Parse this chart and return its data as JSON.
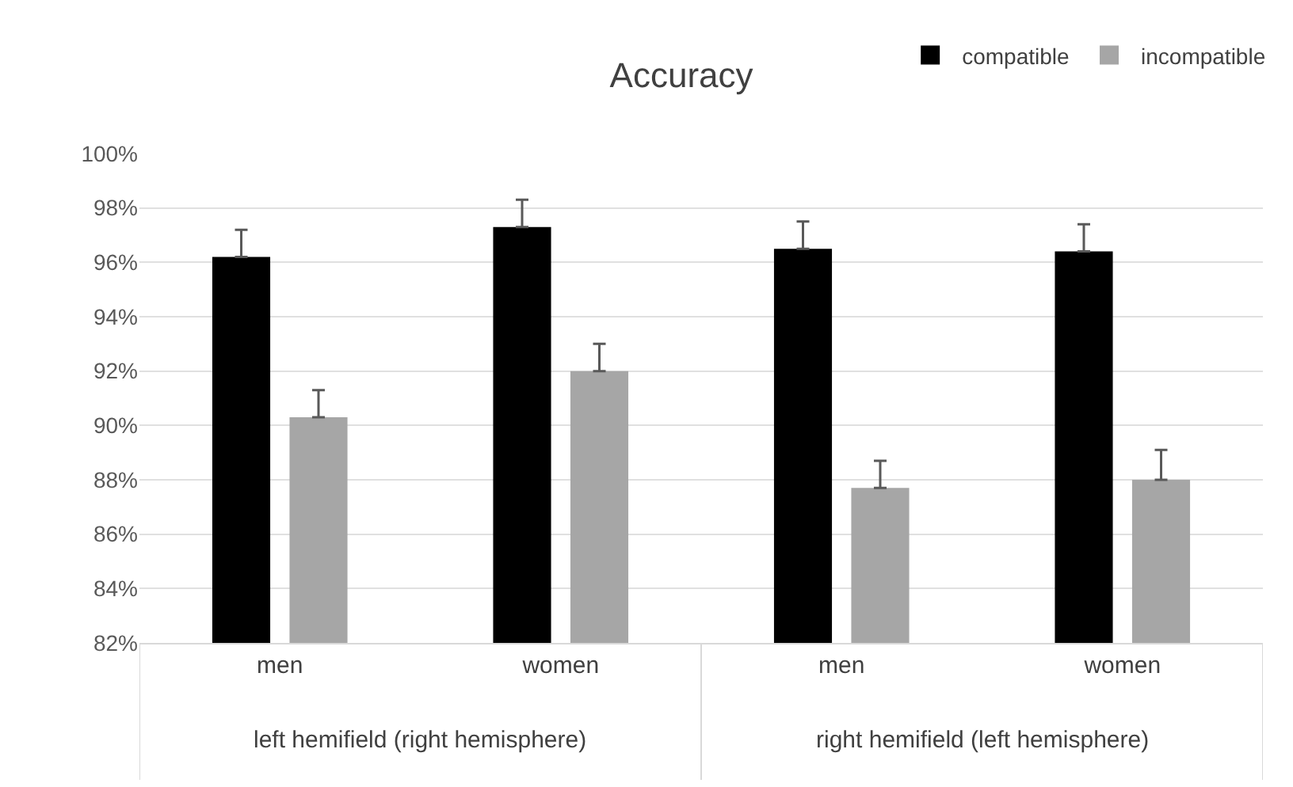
{
  "chart_data": {
    "type": "bar",
    "title": "Accuracy",
    "categories": [
      "men",
      "women",
      "men",
      "women"
    ],
    "series": [
      {
        "name": "compatible",
        "color": "#000000",
        "values": [
          96.2,
          97.3,
          96.5,
          96.4
        ],
        "errors": [
          [
            96.2,
            97.2
          ],
          [
            97.3,
            98.3
          ],
          [
            96.5,
            97.5
          ],
          [
            96.4,
            97.4
          ]
        ]
      },
      {
        "name": "incompatible",
        "color": "#a6a6a6",
        "values": [
          90.3,
          92.0,
          87.7,
          88.0
        ],
        "errors": [
          [
            90.3,
            91.3
          ],
          [
            92.0,
            93.0
          ],
          [
            87.7,
            88.7
          ],
          [
            88.0,
            89.1
          ]
        ]
      }
    ],
    "annotations": [
      "left hemifield (right hemisphere)",
      "right hemifield (left hemisphere)"
    ],
    "ylim": [
      82,
      100
    ],
    "yticks": [
      {
        "value": 82,
        "label": "82%"
      },
      {
        "value": 84,
        "label": "84%"
      },
      {
        "value": 86,
        "label": "86%"
      },
      {
        "value": 88,
        "label": "88%"
      },
      {
        "value": 90,
        "label": "90%"
      },
      {
        "value": 92,
        "label": "92%"
      },
      {
        "value": 94,
        "label": "94%"
      },
      {
        "value": 96,
        "label": "96%"
      },
      {
        "value": 98,
        "label": "98%"
      },
      {
        "value": 100,
        "label": "100%"
      }
    ],
    "grid": "y",
    "legend": "top right"
  }
}
